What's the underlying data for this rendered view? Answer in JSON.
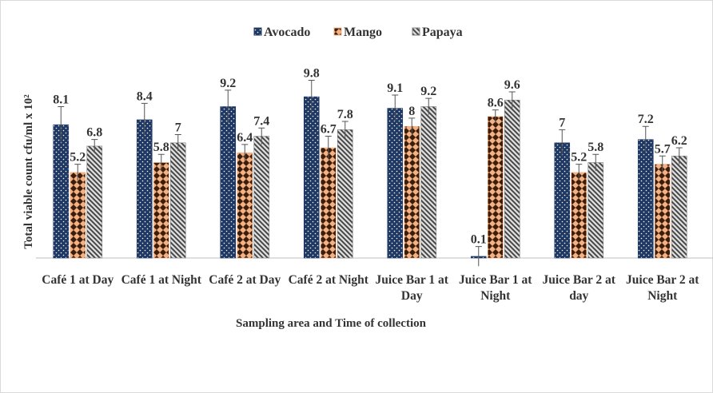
{
  "chart_data": {
    "type": "bar",
    "categories": [
      "Café 1 at Day",
      "Café 1 at Night",
      "Café 2 at Day",
      "Café 2 at Night",
      "Juice Bar 1 at Day",
      "Juice Bar 1 at Night",
      "Juice Bar 2 at day",
      "Juice Bar 2 at Night"
    ],
    "series": [
      {
        "name": "Avocado",
        "color": "#1f3864",
        "values": [
          8.1,
          8.4,
          9.2,
          9.8,
          9.1,
          0.1,
          7,
          7.2
        ],
        "errors": [
          1.1,
          1.0,
          1.0,
          1.0,
          0.8,
          0.6,
          0.8,
          0.8
        ]
      },
      {
        "name": "Mango",
        "color": "#f4b183",
        "values": [
          5.2,
          5.8,
          6.4,
          6.7,
          8,
          8.6,
          5.2,
          5.7
        ],
        "errors": [
          0.5,
          0.5,
          0.5,
          0.7,
          0.5,
          0.4,
          0.5,
          0.5
        ]
      },
      {
        "name": "Papaya",
        "color": "#7f7f7f",
        "values": [
          6.8,
          7,
          7.4,
          7.8,
          9.2,
          9.6,
          5.8,
          6.2
        ],
        "errors": [
          0.4,
          0.5,
          0.5,
          0.5,
          0.5,
          0.5,
          0.5,
          0.5
        ]
      }
    ],
    "ylabel": "Total viable count cfu/ml x 10²",
    "xlabel": "Sampling  area and Time of collection",
    "ylim": [
      0,
      10
    ],
    "legend": "top"
  }
}
